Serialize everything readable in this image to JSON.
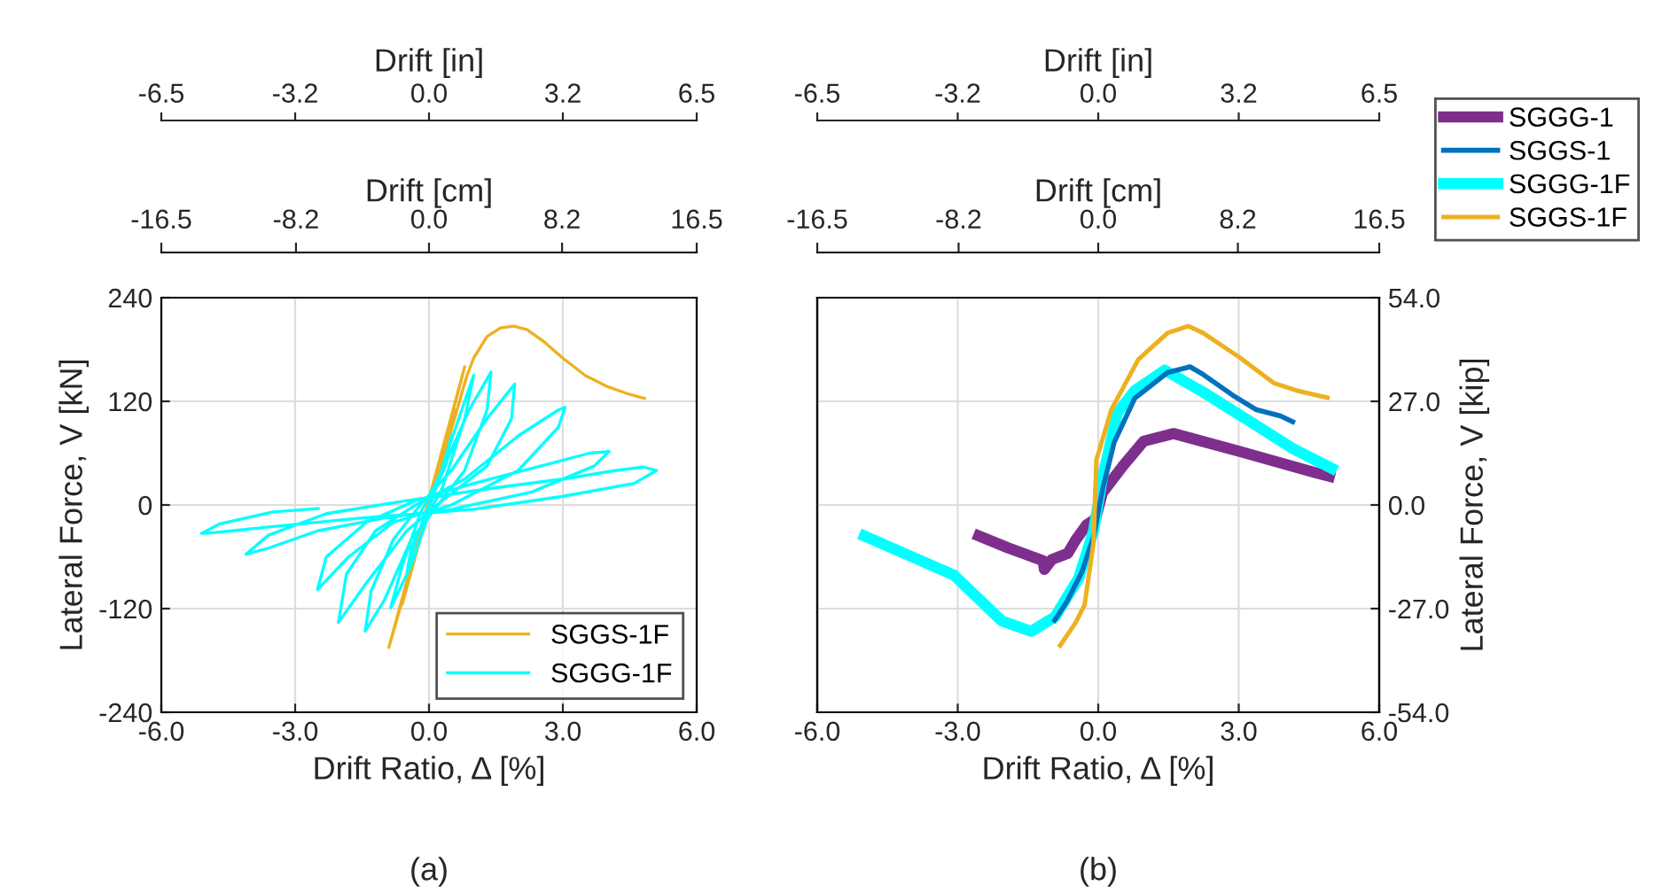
{
  "chart_data": [
    {
      "type": "line",
      "xlabel": "Drift Ratio, Δ [%]",
      "ylabel": "Lateral Force, V [kN]",
      "x2label": "Drift [cm]",
      "xlim": [
        -6,
        6
      ],
      "xticks": [
        {
          "value": -6,
          "label": "-6.0"
        },
        {
          "value": -3,
          "label": "-3.0"
        },
        {
          "value": 0,
          "label": "0.0"
        },
        {
          "value": 3,
          "label": "3.0"
        },
        {
          "value": 6,
          "label": "6.0"
        }
      ],
      "ylim": [
        -240,
        240
      ],
      "yticks": [
        -240,
        -120,
        0,
        120,
        240
      ],
      "x2lim": [
        -16.5,
        16.5
      ],
      "x2ticks": [
        -16.5,
        -8.2,
        {
          "value": 0,
          "label": "0.0"
        },
        8.2,
        16.5
      ],
      "grid": true,
      "legend": "bottom right",
      "annotations": [
        "Drift [in]",
        "-6.5",
        "-3.2",
        "0.0",
        "3.2",
        "6.5",
        "(a)"
      ],
      "series": [
        {
          "name": "SGGS-1F",
          "color": "#edb120",
          "x": [
            0,
            0.2,
            -0.2,
            0.4,
            -0.4,
            0.6,
            -0.6,
            0.8,
            -0.9,
            0.85,
            1.0,
            1.3,
            1.6,
            1.9,
            2.2,
            2.6,
            3.0,
            3.5,
            4.0,
            4.5,
            4.86
          ],
          "values": [
            0,
            35,
            -35,
            70,
            -75,
            110,
            -115,
            160,
            -165,
            150,
            170,
            195,
            205,
            207,
            203,
            188,
            170,
            150,
            137,
            128,
            123
          ]
        },
        {
          "name": "SGGG-1F",
          "color": "#00ffff",
          "x": [
            0,
            0.3,
            0.5,
            0.4,
            0,
            -0.3,
            -0.5,
            -0.4,
            0,
            0.4,
            0.8,
            1.0,
            0.8,
            0.3,
            0,
            -0.4,
            -0.86,
            -0.6,
            -0.2,
            0.3,
            0.9,
            1.39,
            1.3,
            0.8,
            0.2,
            -0.4,
            -1.0,
            -1.43,
            -1.3,
            -0.8,
            -0.2,
            0.5,
            1.3,
            1.92,
            1.85,
            1.3,
            0.3,
            -0.5,
            -1.4,
            -2.03,
            -1.85,
            -1.2,
            -0.3,
            0.8,
            2.0,
            2.9,
            3.05,
            2.9,
            2.0,
            0.5,
            -0.8,
            -1.8,
            -2.5,
            -2.3,
            -1.4,
            -0.3,
            1.0,
            2.5,
            3.6,
            4.04,
            3.7,
            2.3,
            0.5,
            -1.0,
            -2.5,
            -3.6,
            -4.1,
            -3.6,
            -2.3,
            -0.5,
            1.5,
            3.0,
            4.2,
            4.8,
            5.1,
            4.6,
            3.0,
            1.0,
            -1.5,
            -3.5,
            -4.8,
            -5.1,
            -4.7,
            -3.5,
            -2.45
          ],
          "values": [
            0,
            40,
            80,
            50,
            0,
            -40,
            -80,
            -50,
            -5,
            60,
            120,
            150,
            100,
            20,
            -10,
            -70,
            -119,
            -70,
            -10,
            40,
            110,
            154,
            110,
            40,
            0,
            -40,
            -110,
            -146,
            -100,
            -40,
            0,
            40,
            100,
            140,
            100,
            45,
            5,
            -30,
            -90,
            -136,
            -80,
            -30,
            0,
            30,
            80,
            110,
            113,
            90,
            40,
            0,
            -20,
            -60,
            -98,
            -60,
            -20,
            5,
            25,
            45,
            60,
            62,
            45,
            15,
            -5,
            -15,
            -30,
            -50,
            -57,
            -35,
            -10,
            5,
            20,
            30,
            40,
            44,
            40,
            25,
            10,
            -5,
            -15,
            -25,
            -32,
            -33,
            -22,
            -8,
            -4
          ]
        }
      ]
    },
    {
      "type": "line",
      "xlabel": "Drift Ratio, Δ [%]",
      "y2label": "Lateral Force, V [kip]",
      "x2label": "Drift [cm]",
      "xlim": [
        -6,
        6
      ],
      "xticks": [
        {
          "value": -6,
          "label": "-6.0"
        },
        {
          "value": -3,
          "label": "-3.0"
        },
        {
          "value": 0,
          "label": "0.0"
        },
        {
          "value": 3,
          "label": "3.0"
        },
        {
          "value": 6,
          "label": "6.0"
        }
      ],
      "y2lim": [
        -54,
        54
      ],
      "y2ticks": [
        {
          "value": -54,
          "label": "-54.0"
        },
        {
          "value": -27,
          "label": "-27.0"
        },
        {
          "value": 0,
          "label": "0.0"
        },
        {
          "value": 27,
          "label": "27.0"
        },
        {
          "value": 54,
          "label": "54.0"
        }
      ],
      "x2lim": [
        -16.5,
        16.5
      ],
      "x2ticks": [
        -16.5,
        -8.2,
        {
          "value": 0,
          "label": "0.0"
        },
        8.2,
        16.5
      ],
      "grid": true,
      "legend": "top right",
      "annotations": [
        "Drift [in]",
        "-6.5",
        "-3.2",
        "0.0",
        "3.2",
        "6.5",
        "(b)"
      ],
      "series": [
        {
          "name": "SGGG-1",
          "color": "#7e2f8e",
          "axis": "y2",
          "x": [
            -2.66,
            -1.94,
            -1.18,
            -1.15,
            -0.99,
            -0.65,
            -0.48,
            -0.25,
            -0.06,
            0.09,
            0.53,
            0.97,
            1.61,
            3.0,
            4.58,
            5.05
          ],
          "values": [
            -7.5,
            -11.1,
            -14.5,
            -16.8,
            -14.2,
            -12.6,
            -9.1,
            -5.2,
            -3.7,
            3.2,
            10.2,
            16.6,
            18.6,
            14.0,
            8.6,
            7.1
          ]
        },
        {
          "name": "SGGS-1",
          "color": "#0072bd",
          "axis": "y2",
          "x": [
            -0.96,
            -0.67,
            -0.35,
            -0.1,
            0.09,
            0.34,
            0.78,
            1.48,
            1.96,
            2.24,
            2.87,
            3.38,
            3.89,
            4.2
          ],
          "values": [
            -30.6,
            -25.2,
            -17.5,
            -8.3,
            4.0,
            16.3,
            27.8,
            34.5,
            36.0,
            34.0,
            28.6,
            24.8,
            23.2,
            21.4
          ]
        },
        {
          "name": "SGGG-1F",
          "color": "#00ffff",
          "axis": "y2",
          "x": [
            -5.1,
            -4.09,
            -3.08,
            -2.06,
            -1.43,
            -0.92,
            -0.42,
            -0.1,
            0.09,
            0.41,
            0.78,
            1.42,
            2.24,
            3.25,
            4.14,
            5.09
          ],
          "values": [
            -7.5,
            -12.9,
            -18.3,
            -30.2,
            -32.9,
            -29.1,
            -19.1,
            -6.8,
            7.1,
            24.0,
            29.8,
            35.1,
            29.4,
            21.7,
            14.8,
            8.9
          ]
        },
        {
          "name": "SGGS-1F",
          "color": "#edb120",
          "axis": "y2",
          "x": [
            -0.84,
            -0.48,
            -0.29,
            -0.1,
            -0.04,
            0.28,
            0.85,
            1.48,
            1.92,
            2.24,
            3.0,
            3.76,
            4.27,
            4.94
          ],
          "values": [
            -37.1,
            -30.6,
            -26.0,
            -9.8,
            11.7,
            24.8,
            37.8,
            44.8,
            46.6,
            44.8,
            38.6,
            31.7,
            29.7,
            27.8
          ]
        }
      ]
    }
  ]
}
